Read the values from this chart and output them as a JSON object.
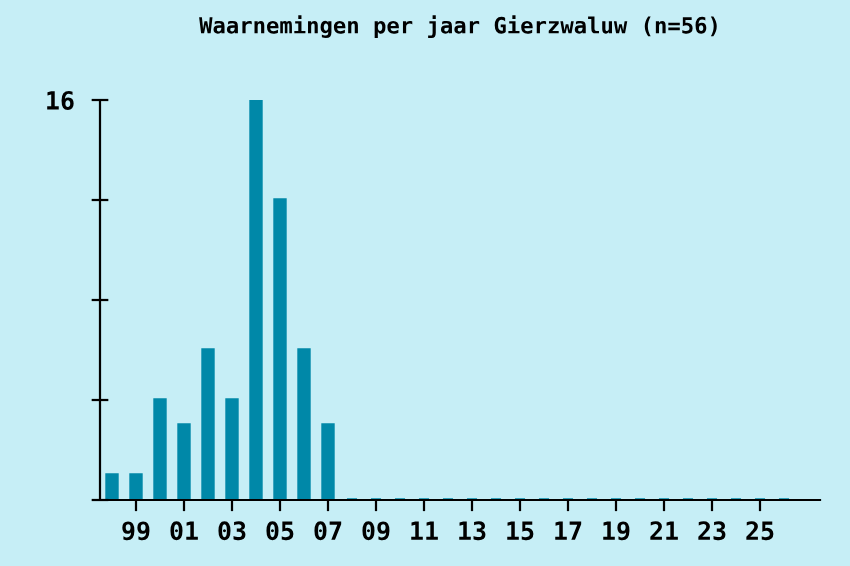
{
  "chart_data": {
    "type": "bar",
    "title": "Waarnemingen per jaar Gierzwaluw (n=56)",
    "categories": [
      null,
      "99",
      null,
      "01",
      null,
      "03",
      null,
      "05",
      null,
      "07",
      null,
      "09",
      null,
      "11",
      null,
      "13",
      null,
      "15",
      null,
      "17",
      null,
      "19",
      null,
      "21",
      null,
      "23",
      null,
      "25",
      null
    ],
    "values": [
      1,
      1,
      4,
      3,
      6,
      4,
      16,
      12,
      6,
      3,
      0,
      0,
      0,
      0,
      0,
      0,
      0,
      0,
      0,
      0,
      0,
      0,
      0,
      0,
      0,
      0,
      0,
      0,
      0
    ],
    "color": "#0088a8",
    "ylim": [
      0,
      16
    ],
    "yticks": [
      {
        "value": 0,
        "label": null
      },
      {
        "value": 4,
        "label": null
      },
      {
        "value": 8,
        "label": null
      },
      {
        "value": 12,
        "label": null
      },
      16
    ],
    "grid": false,
    "legend": false
  }
}
